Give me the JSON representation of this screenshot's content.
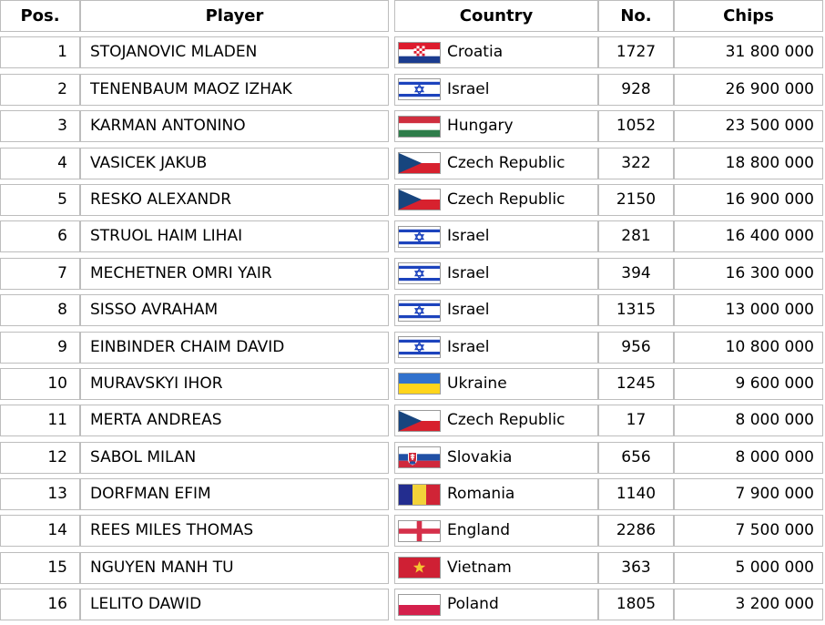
{
  "table": {
    "columns": {
      "pos": "Pos.",
      "player": "Player",
      "country": "Country",
      "no": "No.",
      "chips": "Chips"
    },
    "rows": [
      {
        "pos": "1",
        "player": "STOJANOVIC MLADEN",
        "flag": "croatia",
        "country": "Croatia",
        "no": "1727",
        "chips": "31 800 000"
      },
      {
        "pos": "2",
        "player": "TENENBAUM MAOZ IZHAK",
        "flag": "israel",
        "country": "Israel",
        "no": "928",
        "chips": "26 900 000"
      },
      {
        "pos": "3",
        "player": "KARMAN ANTONINO",
        "flag": "hungary",
        "country": "Hungary",
        "no": "1052",
        "chips": "23 500 000"
      },
      {
        "pos": "4",
        "player": "VASICEK JAKUB",
        "flag": "czech",
        "country": "Czech Republic",
        "no": "322",
        "chips": "18 800 000"
      },
      {
        "pos": "5",
        "player": "RESKO ALEXANDR",
        "flag": "czech",
        "country": "Czech Republic",
        "no": "2150",
        "chips": "16 900 000"
      },
      {
        "pos": "6",
        "player": "STRUOL HAIM LIHAI",
        "flag": "israel",
        "country": "Israel",
        "no": "281",
        "chips": "16 400 000"
      },
      {
        "pos": "7",
        "player": "MECHETNER OMRI YAIR",
        "flag": "israel",
        "country": "Israel",
        "no": "394",
        "chips": "16 300 000"
      },
      {
        "pos": "8",
        "player": "SISSO AVRAHAM",
        "flag": "israel",
        "country": "Israel",
        "no": "1315",
        "chips": "13 000 000"
      },
      {
        "pos": "9",
        "player": "EINBINDER CHAIM DAVID",
        "flag": "israel",
        "country": "Israel",
        "no": "956",
        "chips": "10 800 000"
      },
      {
        "pos": "10",
        "player": "MURAVSKYI IHOR",
        "flag": "ukraine",
        "country": "Ukraine",
        "no": "1245",
        "chips": "9 600 000"
      },
      {
        "pos": "11",
        "player": "MERTA ANDREAS",
        "flag": "czech",
        "country": "Czech Republic",
        "no": "17",
        "chips": "8 000 000"
      },
      {
        "pos": "12",
        "player": "SABOL MILAN",
        "flag": "slovakia",
        "country": "Slovakia",
        "no": "656",
        "chips": "8 000 000"
      },
      {
        "pos": "13",
        "player": "DORFMAN EFIM",
        "flag": "romania",
        "country": "Romania",
        "no": "1140",
        "chips": "7 900 000"
      },
      {
        "pos": "14",
        "player": "REES MILES THOMAS",
        "flag": "england",
        "country": "England",
        "no": "2286",
        "chips": "7 500 000"
      },
      {
        "pos": "15",
        "player": "NGUYEN MANH TU",
        "flag": "vietnam",
        "country": "Vietnam",
        "no": "363",
        "chips": "5 000 000"
      },
      {
        "pos": "16",
        "player": "LELITO DAWID",
        "flag": "poland",
        "country": "Poland",
        "no": "1805",
        "chips": "3 200 000"
      }
    ]
  },
  "colors": {
    "border": "#bdbdbd",
    "flag_border": "#9b9b9b",
    "text": "#000000",
    "background": "#ffffff"
  },
  "flags": {
    "croatia": {
      "red": "#dd1c2e",
      "white": "#ffffff",
      "blue": "#1b3c8f"
    },
    "israel": {
      "blue": "#1c43bd",
      "white": "#ffffff"
    },
    "hungary": {
      "red": "#cf2e3e",
      "white": "#ffffff",
      "green": "#2e7d4a"
    },
    "czech": {
      "white": "#ffffff",
      "red": "#d7212e",
      "blue": "#17457e"
    },
    "ukraine": {
      "blue": "#3272cd",
      "yellow": "#ffd51c"
    },
    "slovakia": {
      "white": "#ffffff",
      "blue": "#2050a5",
      "red": "#d0293c"
    },
    "romania": {
      "blue": "#232d8f",
      "yellow": "#f2d23a",
      "red": "#d02436"
    },
    "england": {
      "white": "#ffffff",
      "red": "#d5304a"
    },
    "vietnam": {
      "red": "#cf2034",
      "yellow": "#f5c531"
    },
    "poland": {
      "white": "#ffffff",
      "red": "#d4204c"
    }
  }
}
